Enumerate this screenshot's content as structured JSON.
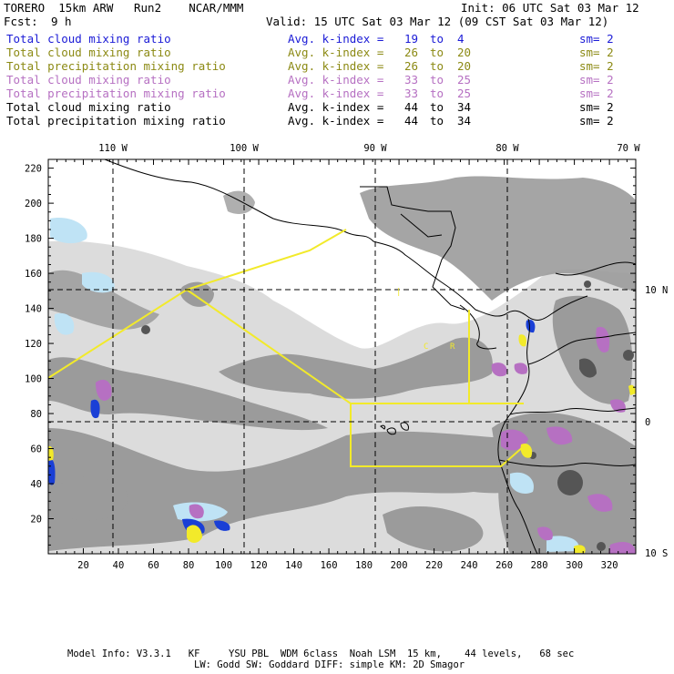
{
  "header": {
    "model": "TORERO  15km ARW   Run2    NCAR/MMM",
    "init": "Init: 06 UTC Sat 03 Mar 12",
    "fcst_label": "Fcst:",
    "fcst_value": "9 h",
    "valid": "Valid: 15 UTC Sat 03 Mar 12 (09 CST Sat 03 Mar 12)"
  },
  "legend": [
    {
      "field": "Total cloud mixing ratio",
      "kidx": "Avg. k-index =",
      "from": "19",
      "to_word": "to",
      "to": "4",
      "sm": "sm= 2",
      "color": "#1a1ad6"
    },
    {
      "field": "Total cloud mixing ratio",
      "kidx": "Avg. k-index =",
      "from": "26",
      "to_word": "to",
      "to": "20",
      "sm": "sm= 2",
      "color": "#8c8a14"
    },
    {
      "field": "Total precipitation mixing ratio",
      "kidx": "Avg. k-index =",
      "from": "26",
      "to_word": "to",
      "to": "20",
      "sm": "sm= 2",
      "color": "#8c8a14"
    },
    {
      "field": "Total cloud mixing ratio",
      "kidx": "Avg. k-index =",
      "from": "33",
      "to_word": "to",
      "to": "25",
      "sm": "sm= 2",
      "color": "#b670c2"
    },
    {
      "field": "Total precipitation mixing ratio",
      "kidx": "Avg. k-index =",
      "from": "33",
      "to_word": "to",
      "to": "25",
      "sm": "sm= 2",
      "color": "#b670c2"
    },
    {
      "field": "Total cloud mixing ratio",
      "kidx": "Avg. k-index =",
      "from": "44",
      "to_word": "to",
      "to": "34",
      "sm": "sm= 2",
      "color": "#000000"
    },
    {
      "field": "Total precipitation mixing ratio",
      "kidx": "Avg. k-index =",
      "from": "44",
      "to_word": "to",
      "to": "34",
      "sm": "sm= 2",
      "color": "#000000"
    }
  ],
  "map": {
    "lon_labels": [
      "110 W",
      "100 W",
      "90 W",
      "80 W",
      "70 W"
    ],
    "lat_labels": [
      "10 N",
      "0",
      "10 S"
    ],
    "x_ticks": [
      "20",
      "40",
      "60",
      "80",
      "100",
      "120",
      "140",
      "160",
      "180",
      "200",
      "220",
      "240",
      "260",
      "280",
      "300",
      "320"
    ],
    "y_ticks": [
      "20",
      "40",
      "60",
      "80",
      "100",
      "120",
      "140",
      "160",
      "180",
      "200",
      "220"
    ],
    "box_labels": [
      "C",
      "R"
    ],
    "colors": {
      "cloud_gray": "#9b9b9b",
      "cloud_dark": "#555555",
      "blue": "#1a3fd6",
      "light_blue": "#bfe3f5",
      "purple": "#b670c2",
      "yellow_box": "#f2ea2a"
    }
  },
  "footer": {
    "line1": "Model Info: V3.3.1   KF     YSU PBL  WDM 6class  Noah LSM  15 km,    44 levels,   68 sec",
    "line2": "LW: Godd SW: Goddard DIFF: simple KM: 2D Smagor"
  }
}
